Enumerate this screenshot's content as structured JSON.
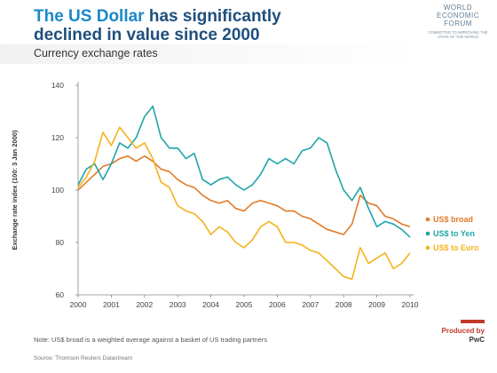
{
  "header": {
    "title_part1": "The US Dollar",
    "title_part2": " has significantly declined in value since 2000",
    "subtitle": "Currency exchange rates"
  },
  "logo": {
    "line1": "WORLD",
    "line2": "ECONOMIC",
    "line3": "FORUM",
    "tagline": "COMMITTED TO IMPROVING THE STATE OF THE WORLD"
  },
  "footer": {
    "note": "Note: US$ broad is a weighted average against a basket of US trading partners",
    "source": "Source: Thomson Reuters Datastream",
    "produced_by": "Produced by",
    "producer": "PwC"
  },
  "colors": {
    "broad": "#e07b2a",
    "yen": "#1fa5a8",
    "euro": "#f5b21b"
  },
  "chart_data": {
    "type": "line",
    "ylabel": "Exchange rate index (100: 3 Jan 2000)",
    "xlabel": "",
    "xlim": [
      2000,
      2010
    ],
    "ylim": [
      60,
      140
    ],
    "yticks": [
      60,
      80,
      100,
      120,
      140
    ],
    "xticks": [
      "2000",
      "2001",
      "2002",
      "2003",
      "2004",
      "2005",
      "2006",
      "2007",
      "2008",
      "2009",
      "2010"
    ],
    "grid": false,
    "legend_position": "right",
    "series": [
      {
        "name": "US$ broad",
        "color": "#e07b2a",
        "x": [
          2000,
          2000.25,
          2000.5,
          2000.75,
          2001,
          2001.25,
          2001.5,
          2001.75,
          2002,
          2002.25,
          2002.5,
          2002.75,
          2003,
          2003.25,
          2003.5,
          2003.75,
          2004,
          2004.25,
          2004.5,
          2004.75,
          2005,
          2005.25,
          2005.5,
          2005.75,
          2006,
          2006.25,
          2006.5,
          2006.75,
          2007,
          2007.25,
          2007.5,
          2007.75,
          2008,
          2008.25,
          2008.5,
          2008.75,
          2009,
          2009.25,
          2009.5,
          2009.75,
          2010
        ],
        "y": [
          100,
          103,
          106,
          109,
          110,
          112,
          113,
          111,
          113,
          111,
          108,
          107,
          104,
          102,
          101,
          98,
          96,
          95,
          96,
          93,
          92,
          95,
          96,
          95,
          94,
          92,
          92,
          90,
          89,
          87,
          85,
          84,
          83,
          87,
          98,
          95,
          94,
          90,
          89,
          87,
          86
        ]
      },
      {
        "name": "US$ to Yen",
        "color": "#1fa5a8",
        "x": [
          2000,
          2000.25,
          2000.5,
          2000.75,
          2001,
          2001.25,
          2001.5,
          2001.75,
          2002,
          2002.25,
          2002.5,
          2002.75,
          2003,
          2003.25,
          2003.5,
          2003.75,
          2004,
          2004.25,
          2004.5,
          2004.75,
          2005,
          2005.25,
          2005.5,
          2005.75,
          2006,
          2006.25,
          2006.5,
          2006.75,
          2007,
          2007.25,
          2007.5,
          2007.75,
          2008,
          2008.25,
          2008.5,
          2008.75,
          2009,
          2009.25,
          2009.5,
          2009.75,
          2010
        ],
        "y": [
          102,
          108,
          110,
          104,
          110,
          118,
          116,
          120,
          128,
          132,
          120,
          116,
          116,
          112,
          114,
          104,
          102,
          104,
          105,
          102,
          100,
          102,
          106,
          112,
          110,
          112,
          110,
          115,
          116,
          120,
          118,
          108,
          100,
          96,
          101,
          93,
          86,
          88,
          87,
          85,
          82
        ]
      },
      {
        "name": "US$ to Euro",
        "color": "#f5b21b",
        "x": [
          2000,
          2000.25,
          2000.5,
          2000.75,
          2001,
          2001.25,
          2001.5,
          2001.75,
          2002,
          2002.25,
          2002.5,
          2002.75,
          2003,
          2003.25,
          2003.5,
          2003.75,
          2004,
          2004.25,
          2004.5,
          2004.75,
          2005,
          2005.25,
          2005.5,
          2005.75,
          2006,
          2006.25,
          2006.5,
          2006.75,
          2007,
          2007.25,
          2007.5,
          2007.75,
          2008,
          2008.25,
          2008.5,
          2008.75,
          2009,
          2009.25,
          2009.5,
          2009.75,
          2010
        ],
        "y": [
          101,
          105,
          111,
          122,
          117,
          124,
          120,
          116,
          118,
          112,
          103,
          101,
          94,
          92,
          91,
          88,
          83,
          86,
          84,
          80,
          78,
          81,
          86,
          88,
          86,
          80,
          80,
          79,
          77,
          76,
          73,
          70,
          67,
          66,
          78,
          72,
          74,
          76,
          70,
          72,
          76
        ]
      }
    ]
  }
}
